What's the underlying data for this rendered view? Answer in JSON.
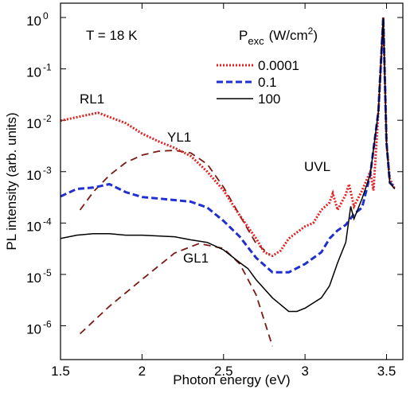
{
  "chart_data": {
    "type": "line",
    "log_y": true,
    "x_label": "Photon energy (eV)",
    "y_label": "PL intensity (arb. units)",
    "legend_title": {
      "main": "P",
      "sub": "exc",
      "unit": "(W/cm",
      "sup": "2",
      "close": ")"
    },
    "annotations": [
      "T = 18 K",
      "RL1",
      "YL1",
      "UVL",
      "GL1"
    ],
    "xlim": [
      1.5,
      3.6
    ],
    "xticks": [
      1.5,
      2,
      2.5,
      3,
      3.5
    ],
    "ylim": [
      2.2e-07,
      1.9
    ],
    "yticks": [
      {
        "value": 1e-06,
        "label": {
          "base": "10",
          "exp": "-6"
        }
      },
      {
        "value": 1e-05,
        "label": {
          "base": "10",
          "exp": "-5"
        }
      },
      {
        "value": 0.0001,
        "label": {
          "base": "10",
          "exp": "-4"
        }
      },
      {
        "value": 0.001,
        "label": {
          "base": "10",
          "exp": "-3"
        }
      },
      {
        "value": 0.01,
        "label": {
          "base": "10",
          "exp": "-2"
        }
      },
      {
        "value": 0.1,
        "label": {
          "base": "10",
          "exp": "-1"
        }
      },
      {
        "value": 1,
        "label": {
          "base": "10",
          "exp": "0"
        }
      }
    ],
    "series": [
      {
        "name": "0.0001",
        "color": "#e32020",
        "style": "dotted",
        "x": [
          1.5,
          1.73,
          1.9,
          2.0,
          2.1,
          2.2,
          2.3,
          2.4,
          2.5,
          2.6,
          2.7,
          2.75,
          2.8,
          2.85,
          2.9,
          3.0,
          3.05,
          3.1,
          3.15,
          3.17,
          3.2,
          3.25,
          3.27,
          3.3,
          3.35,
          3.4,
          3.42,
          3.45,
          3.48,
          3.5,
          3.52,
          3.55
        ],
        "values": [
          0.0098,
          0.014,
          0.0088,
          0.0055,
          0.0039,
          0.0029,
          0.002,
          0.001,
          0.00043,
          0.00014,
          5e-05,
          2.7e-05,
          2.3e-05,
          2.9e-05,
          5e-05,
          8.6e-05,
          0.0001,
          0.00018,
          0.00025,
          0.00038,
          0.00018,
          0.00036,
          0.00057,
          0.00021,
          0.00043,
          0.001,
          0.00043,
          0.015,
          1,
          0.0036,
          0.00073,
          0.00046
        ]
      },
      {
        "name": "0.1",
        "color": "#1f2fd0",
        "style": "dashed",
        "x": [
          1.5,
          1.6,
          1.7,
          1.8,
          1.9,
          2.0,
          2.1,
          2.2,
          2.3,
          2.4,
          2.5,
          2.6,
          2.7,
          2.8,
          2.9,
          3.0,
          3.1,
          3.15,
          3.2,
          3.25,
          3.3,
          3.35,
          3.4,
          3.45,
          3.48,
          3.5,
          3.52,
          3.55
        ],
        "values": [
          0.00033,
          0.00046,
          0.00049,
          0.00057,
          0.0004,
          0.00032,
          0.0003,
          0.00028,
          0.00026,
          0.0002,
          0.00011,
          5.4e-05,
          2.1e-05,
          1.1e-05,
          1.1e-05,
          1.6e-05,
          2.7e-05,
          5e-05,
          7.2e-05,
          9.2e-05,
          0.00015,
          0.0002,
          0.00087,
          0.015,
          1,
          0.0036,
          0.00061,
          0.00049
        ]
      },
      {
        "name": "100",
        "color": "#000000",
        "style": "solid",
        "x": [
          1.5,
          1.6,
          1.7,
          1.8,
          1.9,
          2.0,
          2.1,
          2.2,
          2.3,
          2.4,
          2.5,
          2.6,
          2.65,
          2.7,
          2.8,
          2.9,
          2.95,
          3.0,
          3.1,
          3.15,
          3.2,
          3.25,
          3.28,
          3.3,
          3.35,
          3.4,
          3.45,
          3.48,
          3.5,
          3.52,
          3.55
        ],
        "values": [
          5e-05,
          5.8e-05,
          6.2e-05,
          6.2e-05,
          5.8e-05,
          5.8e-05,
          5.6e-05,
          5.4e-05,
          4.7e-05,
          4.2e-05,
          3e-05,
          1.7e-05,
          1.3e-05,
          7.9e-06,
          3.5e-06,
          1.9e-06,
          1.9e-06,
          2.2e-06,
          3.5e-06,
          6e-06,
          1.7e-05,
          4.2e-05,
          0.00021,
          0.00012,
          0.0003,
          0.00087,
          0.015,
          1,
          0.0036,
          0.00061,
          0.00046
        ]
      }
    ],
    "fits": [
      {
        "color": "#7a1a10",
        "x": [
          1.62,
          1.7,
          1.8,
          1.9,
          2.0,
          2.1,
          2.2,
          2.3,
          2.4,
          2.5,
          2.6,
          2.7,
          2.78
        ],
        "values": [
          0.00018,
          0.0004,
          0.00085,
          0.0015,
          0.0021,
          0.0025,
          0.0026,
          0.0023,
          0.0014,
          0.0005,
          0.00014,
          4e-05,
          2.5e-05
        ]
      },
      {
        "color": "#7a1a10",
        "x": [
          1.62,
          1.8,
          2.0,
          2.2,
          2.35,
          2.5,
          2.6,
          2.7,
          2.8
        ],
        "values": [
          7e-07,
          2.4e-06,
          8e-06,
          2.6e-05,
          4e-05,
          3.2e-05,
          1.6e-05,
          4e-06,
          4e-07
        ]
      }
    ]
  }
}
